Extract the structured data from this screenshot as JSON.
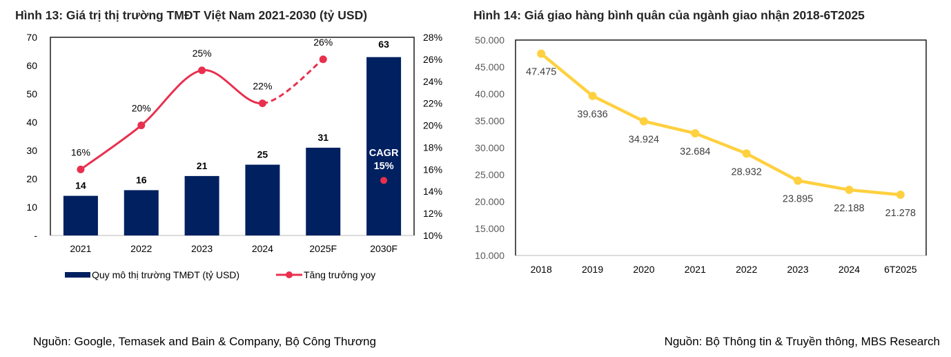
{
  "chart_data": [
    {
      "type": "bar",
      "title": "Hình 13: Giá trị thị trường TMĐT Việt Nam 2021-2030 (tỷ USD)",
      "categories": [
        "2021",
        "2022",
        "2023",
        "2024",
        "2025F",
        "2030F"
      ],
      "ylim": [
        0,
        70
      ],
      "yticks": [
        "-",
        "10",
        "20",
        "30",
        "40",
        "50",
        "60",
        "70"
      ],
      "y2lim": [
        10,
        28
      ],
      "y2ticks": [
        "10%",
        "12%",
        "14%",
        "16%",
        "18%",
        "20%",
        "22%",
        "24%",
        "26%",
        "28%"
      ],
      "series": [
        {
          "name": "Quy mô thị trường TMĐT (tỷ USD)",
          "type": "bar",
          "axis": "left",
          "color": "#002060",
          "values": [
            14,
            16,
            21,
            25,
            31,
            63
          ],
          "labels": [
            "14",
            "16",
            "21",
            "25",
            "31",
            "63"
          ]
        },
        {
          "name": "Tăng trưởng yoy",
          "type": "line",
          "axis": "right",
          "color": "#E8304E",
          "values": [
            16,
            20,
            25,
            22,
            26,
            null
          ],
          "labels": [
            "16%",
            "20%",
            "25%",
            "22%",
            "26%",
            ""
          ],
          "dashed_from_index": 3
        }
      ],
      "annotation": {
        "text_line1": "CAGR",
        "text_line2": "15%",
        "category": "2030F",
        "value": 15
      },
      "legend_position": "bottom",
      "source": "Nguồn: Google, Temasek and Bain & Company, Bộ Công Thương"
    },
    {
      "type": "line",
      "title": "Hình 14: Giá giao hàng bình quân của ngành giao nhận 2018-6T2025",
      "categories": [
        "2018",
        "2019",
        "2020",
        "2021",
        "2022",
        "2023",
        "2024",
        "6T2025"
      ],
      "ylim": [
        10000,
        50000
      ],
      "yticks": [
        "10.000",
        "15.000",
        "20.000",
        "25.000",
        "30.000",
        "35.000",
        "40.000",
        "45.000",
        "50.000"
      ],
      "series": [
        {
          "name": "Giá giao hàng bình quân",
          "color": "#FFD040",
          "values": [
            47475,
            39636,
            34924,
            32684,
            28932,
            23895,
            22188,
            21278
          ],
          "labels": [
            "47.475",
            "39.636",
            "34.924",
            "32.684",
            "28.932",
            "23.895",
            "22.188",
            "21.278"
          ]
        }
      ],
      "source": "Nguồn: Bộ Thông tin & Truyền thông, MBS Research"
    }
  ]
}
